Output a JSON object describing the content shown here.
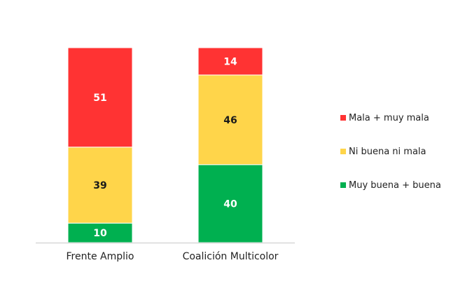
{
  "chart_data": {
    "type": "bar",
    "stacked": true,
    "percent": true,
    "categories": [
      "Frente Amplio",
      "Coalición Multicolor"
    ],
    "series": [
      {
        "name": "Muy buena + buena",
        "values": [
          10,
          40
        ],
        "color": "#00B050",
        "label_color": "#ffffff"
      },
      {
        "name": "Ni buena ni mala",
        "values": [
          39,
          46
        ],
        "color": "#FFD54A",
        "label_color": "#1a1a1a"
      },
      {
        "name": "Mala + muy mala",
        "values": [
          51,
          14
        ],
        "color": "#FF3333",
        "label_color": "#ffffff"
      }
    ],
    "ylim": [
      0,
      100
    ],
    "legend": {
      "position": "right",
      "order": [
        "Mala + muy mala",
        "Ni buena ni mala",
        "Muy buena + buena"
      ]
    },
    "grid": false
  }
}
